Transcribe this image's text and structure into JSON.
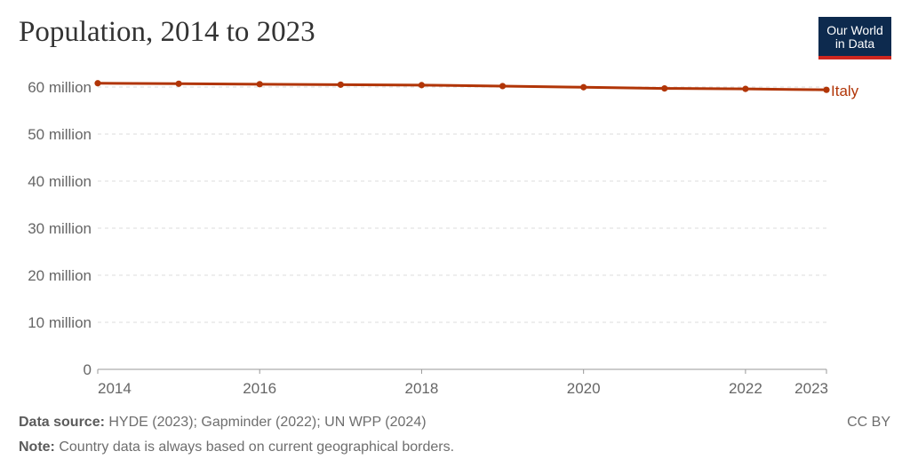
{
  "title": "Population, 2014 to 2023",
  "logo": {
    "line1": "Our World",
    "line2": "in Data"
  },
  "chart_data": {
    "type": "line",
    "title": "Population, 2014 to 2023",
    "xlabel": "",
    "ylabel": "",
    "x": [
      2014,
      2015,
      2016,
      2017,
      2018,
      2019,
      2020,
      2021,
      2022,
      2023
    ],
    "series": [
      {
        "name": "Italy",
        "color": "#b13507",
        "values": [
          60800000,
          60700000,
          60600000,
          60500000,
          60400000,
          60200000,
          59950000,
          59700000,
          59600000,
          59400000
        ]
      }
    ],
    "xlim": [
      2014,
      2023
    ],
    "ylim": [
      0,
      60000000
    ],
    "y_ticks": [
      {
        "value": 0,
        "label": "0"
      },
      {
        "value": 10000000,
        "label": "10 million"
      },
      {
        "value": 20000000,
        "label": "20 million"
      },
      {
        "value": 30000000,
        "label": "30 million"
      },
      {
        "value": 40000000,
        "label": "40 million"
      },
      {
        "value": 50000000,
        "label": "50 million"
      },
      {
        "value": 60000000,
        "label": "60 million"
      }
    ],
    "x_ticks": [
      {
        "value": 2014,
        "label": "2014"
      },
      {
        "value": 2016,
        "label": "2016"
      },
      {
        "value": 2018,
        "label": "2018"
      },
      {
        "value": 2020,
        "label": "2020"
      },
      {
        "value": 2022,
        "label": "2022"
      },
      {
        "value": 2023,
        "label": "2023"
      }
    ],
    "grid": true,
    "legend": "end-of-line label"
  },
  "footer": {
    "source_label": "Data source:",
    "source_text": "HYDE (2023); Gapminder (2022); UN WPP (2024)",
    "note_label": "Note:",
    "note_text": "Country data is always based on current geographical borders.",
    "license": "CC BY"
  },
  "colors": {
    "line": "#b13507",
    "grid": "#dddddd",
    "axis": "#999999",
    "text": "#666666",
    "logo_bg": "#0d2a4e",
    "logo_bar": "#ce261e"
  }
}
